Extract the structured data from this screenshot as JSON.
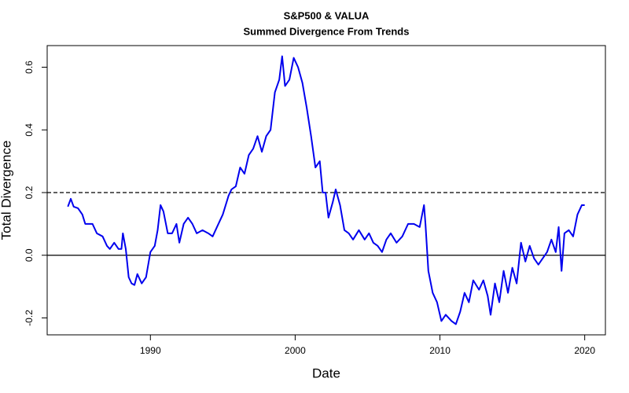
{
  "chart_data": {
    "type": "line",
    "title": "S&P500 & VALUA",
    "subtitle": "Summed Divergence From Trends",
    "xlabel": "Date",
    "ylabel": "Total Divergence",
    "color": "#0000ee",
    "xlim": [
      1982.87,
      2021.43
    ],
    "ylim": [
      -0.254,
      0.669
    ],
    "xticks": [
      1990,
      2000,
      2010,
      2020
    ],
    "yticks": [
      -0.2,
      {
        "value": 0,
        "label": "0.0"
      },
      0.2,
      0.4,
      0.6
    ],
    "hlines": [
      {
        "value": 0.2,
        "dashed": true
      },
      {
        "value": 0,
        "dashed": false
      }
    ],
    "x": [
      1984.3,
      1984.5,
      1984.7,
      1985.0,
      1985.3,
      1985.5,
      1986.0,
      1986.3,
      1986.7,
      1987.0,
      1987.2,
      1987.5,
      1987.8,
      1988.0,
      1988.1,
      1988.3,
      1988.5,
      1988.7,
      1988.9,
      1989.1,
      1989.4,
      1989.7,
      1990.0,
      1990.3,
      1990.5,
      1990.7,
      1990.9,
      1991.2,
      1991.5,
      1991.8,
      1992.0,
      1992.3,
      1992.6,
      1992.9,
      1993.2,
      1993.6,
      1994.0,
      1994.3,
      1994.6,
      1995.0,
      1995.4,
      1995.6,
      1995.9,
      1996.2,
      1996.5,
      1996.8,
      1997.1,
      1997.4,
      1997.7,
      1998.0,
      1998.3,
      1998.6,
      1998.9,
      1999.1,
      1999.3,
      1999.6,
      1999.9,
      2000.2,
      2000.5,
      2000.8,
      2001.1,
      2001.4,
      2001.7,
      2001.9,
      2002.1,
      2002.3,
      2002.6,
      2002.8,
      2003.1,
      2003.4,
      2003.7,
      2004.0,
      2004.4,
      2004.8,
      2005.1,
      2005.4,
      2005.7,
      2006.0,
      2006.3,
      2006.6,
      2007.0,
      2007.4,
      2007.8,
      2008.2,
      2008.6,
      2008.9,
      2009.0,
      2009.2,
      2009.5,
      2009.8,
      2010.1,
      2010.4,
      2010.8,
      2011.1,
      2011.4,
      2011.7,
      2012.0,
      2012.3,
      2012.7,
      2013.0,
      2013.3,
      2013.5,
      2013.8,
      2014.1,
      2014.4,
      2014.7,
      2015.0,
      2015.3,
      2015.6,
      2015.9,
      2016.2,
      2016.5,
      2016.8,
      2017.1,
      2017.4,
      2017.7,
      2018.0,
      2018.2,
      2018.4,
      2018.6,
      2018.9,
      2019.2,
      2019.5,
      2019.8,
      2020.0
    ],
    "values": [
      0.155,
      0.18,
      0.155,
      0.15,
      0.13,
      0.1,
      0.1,
      0.07,
      0.06,
      0.03,
      0.02,
      0.04,
      0.02,
      0.02,
      0.07,
      0.02,
      -0.07,
      -0.09,
      -0.095,
      -0.06,
      -0.09,
      -0.07,
      0.01,
      0.03,
      0.08,
      0.16,
      0.14,
      0.07,
      0.07,
      0.1,
      0.04,
      0.1,
      0.12,
      0.1,
      0.07,
      0.08,
      0.07,
      0.06,
      0.09,
      0.13,
      0.19,
      0.21,
      0.22,
      0.28,
      0.26,
      0.32,
      0.34,
      0.38,
      0.33,
      0.38,
      0.4,
      0.52,
      0.56,
      0.635,
      0.54,
      0.56,
      0.63,
      0.6,
      0.55,
      0.47,
      0.38,
      0.28,
      0.3,
      0.2,
      0.2,
      0.12,
      0.17,
      0.21,
      0.16,
      0.08,
      0.07,
      0.05,
      0.08,
      0.05,
      0.07,
      0.04,
      0.03,
      0.01,
      0.05,
      0.07,
      0.04,
      0.06,
      0.1,
      0.1,
      0.09,
      0.16,
      0.1,
      -0.05,
      -0.12,
      -0.15,
      -0.21,
      -0.19,
      -0.21,
      -0.22,
      -0.18,
      -0.12,
      -0.15,
      -0.08,
      -0.11,
      -0.08,
      -0.13,
      -0.19,
      -0.09,
      -0.15,
      -0.05,
      -0.12,
      -0.04,
      -0.09,
      0.04,
      -0.02,
      0.03,
      -0.01,
      -0.03,
      -0.01,
      0.01,
      0.05,
      0.01,
      0.09,
      -0.05,
      0.07,
      0.08,
      0.06,
      0.13,
      0.16,
      0.16
    ]
  }
}
